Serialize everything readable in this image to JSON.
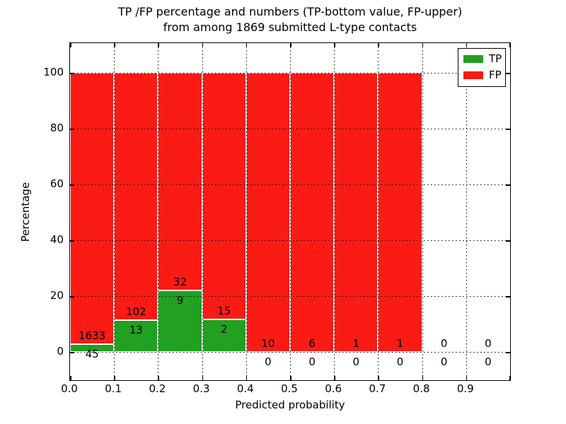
{
  "figure": {
    "title_line1": "TP /FP percentage and numbers (TP-bottom value, FP-upper)",
    "title_line2": "from among 1869 submitted L-type contacts",
    "xlabel": "Predicted probability",
    "ylabel": "Percentage"
  },
  "legend": {
    "entries": [
      {
        "label": "TP",
        "color": "#21a021"
      },
      {
        "label": "FP",
        "color": "#fb1b15"
      }
    ]
  },
  "chart_data": {
    "type": "bar",
    "stacked": true,
    "title": "TP /FP percentage and numbers (TP-bottom value, FP-upper) from among 1869 submitted L-type contacts",
    "xlabel": "Predicted probability",
    "ylabel": "Percentage",
    "total_contacts": 1869,
    "x_tick_labels": [
      "0.0",
      "0.1",
      "0.2",
      "0.3",
      "0.4",
      "0.5",
      "0.6",
      "0.7",
      "0.8",
      "0.9"
    ],
    "y_tick_labels": [
      "0",
      "20",
      "40",
      "60",
      "80",
      "100"
    ],
    "y_tick_values": [
      0,
      20,
      40,
      60,
      80,
      100
    ],
    "xlim": [
      0.0,
      1.0
    ],
    "ylim": [
      -10,
      110
    ],
    "grid": "dotted black, drawn above bars",
    "legend_position": "upper right",
    "colors": {
      "tp": "#21a021",
      "fp": "#fb1b15",
      "edge": "#ffffff"
    },
    "bins": [
      {
        "range": "0.0-0.1",
        "tp_count": 45,
        "fp_count": 1633,
        "tp_percent": 2.68,
        "fp_percent": 97.32,
        "has_bar": true
      },
      {
        "range": "0.1-0.2",
        "tp_count": 13,
        "fp_count": 102,
        "tp_percent": 11.3,
        "fp_percent": 88.7,
        "has_bar": true
      },
      {
        "range": "0.2-0.3",
        "tp_count": 9,
        "fp_count": 32,
        "tp_percent": 21.95,
        "fp_percent": 78.05,
        "has_bar": true
      },
      {
        "range": "0.3-0.4",
        "tp_count": 2,
        "fp_count": 15,
        "tp_percent": 11.76,
        "fp_percent": 88.24,
        "has_bar": true
      },
      {
        "range": "0.4-0.5",
        "tp_count": 0,
        "fp_count": 10,
        "tp_percent": 0,
        "fp_percent": 100,
        "has_bar": true
      },
      {
        "range": "0.5-0.6",
        "tp_count": 0,
        "fp_count": 6,
        "tp_percent": 0,
        "fp_percent": 100,
        "has_bar": true
      },
      {
        "range": "0.6-0.7",
        "tp_count": 0,
        "fp_count": 1,
        "tp_percent": 0,
        "fp_percent": 100,
        "has_bar": true
      },
      {
        "range": "0.7-0.8",
        "tp_count": 0,
        "fp_count": 1,
        "tp_percent": 0,
        "fp_percent": 100,
        "has_bar": true
      },
      {
        "range": "0.8-0.9",
        "tp_count": 0,
        "fp_count": 0,
        "tp_percent": 0,
        "fp_percent": 0,
        "has_bar": false
      },
      {
        "range": "0.9-1.0",
        "tp_count": 0,
        "fp_count": 0,
        "tp_percent": 0,
        "fp_percent": 0,
        "has_bar": false
      }
    ]
  }
}
